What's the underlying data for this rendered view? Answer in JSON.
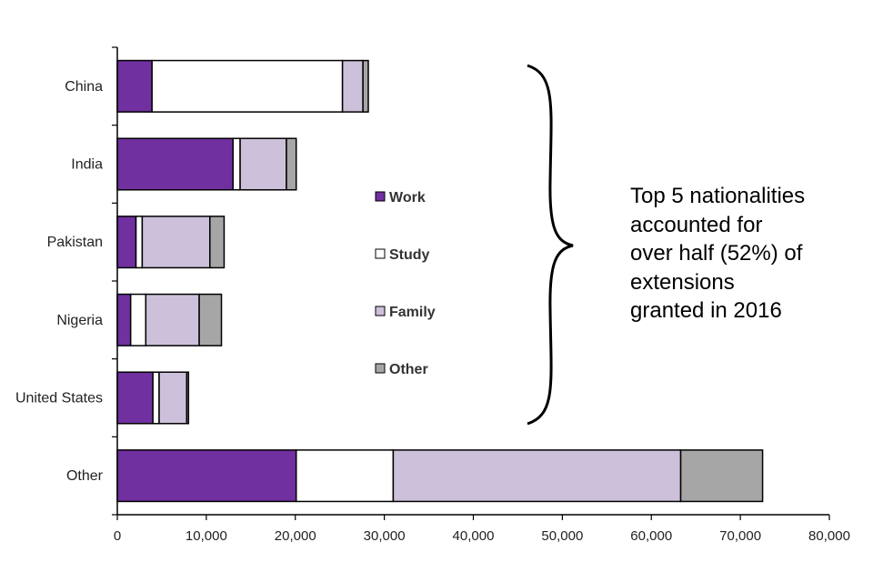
{
  "chart_data": {
    "type": "bar",
    "orientation": "horizontal",
    "stacked": true,
    "categories": [
      "China",
      "India",
      "Pakistan",
      "Nigeria",
      "United States",
      "Other"
    ],
    "series": [
      {
        "name": "Work",
        "color": "#7030A0",
        "values": [
          3900,
          13000,
          2100,
          1500,
          4000,
          20100
        ]
      },
      {
        "name": "Study",
        "color": "#FFFFFF",
        "values": [
          21400,
          800,
          700,
          1700,
          700,
          10900
        ]
      },
      {
        "name": "Family",
        "color": "#CCC0DA",
        "values": [
          2300,
          5200,
          7600,
          6000,
          3100,
          32300
        ]
      },
      {
        "name": "Other",
        "color": "#A6A6A6",
        "values": [
          600,
          1100,
          1600,
          2500,
          200,
          9200
        ]
      }
    ],
    "xlim": [
      0,
      80000
    ],
    "xticks": [
      "0",
      "10,000",
      "20,000",
      "30,000",
      "40,000",
      "50,000",
      "60,000",
      "70,000",
      "80,000"
    ],
    "grid": false,
    "legend_position": "center",
    "xlabel": "",
    "ylabel": "",
    "title": ""
  },
  "annotation": {
    "lines": [
      "Top 5 nationalities",
      "accounted for",
      "over half (52%) of",
      "extensions",
      "granted in 2016"
    ]
  }
}
